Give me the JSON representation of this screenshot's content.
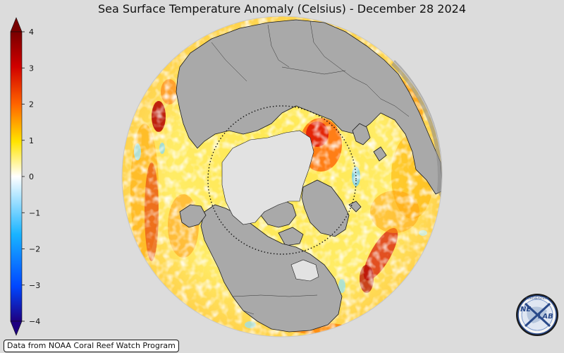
{
  "title": "Sea Surface Temperature Anomaly (Celsius) - December 28 2024",
  "colorbar": {
    "ticks": [
      4,
      3,
      2,
      1,
      0,
      -1,
      -2,
      -3,
      -4
    ],
    "tick_labels": [
      "4",
      "3",
      "2",
      "1",
      "0",
      "−1",
      "−2",
      "−3",
      "−4"
    ],
    "range": [
      -4,
      4
    ],
    "extend": "both",
    "colors": [
      "#1e0080",
      "#0046ff",
      "#19b4ff",
      "#ffffff",
      "#ffe400",
      "#ff6400",
      "#d00000",
      "#780000"
    ]
  },
  "credit": "Data from NOAA Coral Reef Watch Program",
  "logo": {
    "text_left": "NE",
    "text_right": "LAB",
    "ring_text": "NORTHEASTERN"
  },
  "map": {
    "projection": "orthographic-north-polar",
    "land_color": "#a9a9a9",
    "sea_ice_color": "#e2e2e2",
    "arctic_circle": "dotted"
  }
}
